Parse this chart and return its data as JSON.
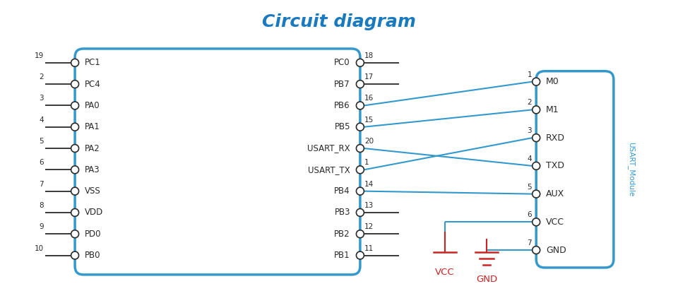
{
  "title": "Circuit diagram",
  "title_color": "#1a7abf",
  "title_fontsize": 18,
  "bg_color": "#ffffff",
  "dark_color": "#2a2a2a",
  "blue_color": "#3399cc",
  "red_color": "#cc2222",
  "left_pins": [
    {
      "label": "PC1",
      "num": "19"
    },
    {
      "label": "PC4",
      "num": "2"
    },
    {
      "label": "PA0",
      "num": "3"
    },
    {
      "label": "PA1",
      "num": "4"
    },
    {
      "label": "PA2",
      "num": "5"
    },
    {
      "label": "PA3",
      "num": "6"
    },
    {
      "label": "VSS",
      "num": "7"
    },
    {
      "label": "VDD",
      "num": "8"
    },
    {
      "label": "PD0",
      "num": "9"
    },
    {
      "label": "PB0",
      "num": "10"
    }
  ],
  "right_pins": [
    {
      "label": "PC0",
      "num": "18"
    },
    {
      "label": "PB7",
      "num": "17"
    },
    {
      "label": "PB6",
      "num": "16"
    },
    {
      "label": "PB5",
      "num": "15"
    },
    {
      "label": "USART_RX",
      "num": "20"
    },
    {
      "label": "USART_TX",
      "num": "1"
    },
    {
      "label": "PB4",
      "num": "14"
    },
    {
      "label": "PB3",
      "num": "13"
    },
    {
      "label": "PB2",
      "num": "12"
    },
    {
      "label": "PB1",
      "num": "11"
    }
  ],
  "module_pins": [
    {
      "label": "M0",
      "num": "1"
    },
    {
      "label": "M1",
      "num": "2"
    },
    {
      "label": "RXD",
      "num": "3"
    },
    {
      "label": "TXD",
      "num": "4"
    },
    {
      "label": "AUX",
      "num": "5"
    },
    {
      "label": "VCC",
      "num": "6"
    },
    {
      "label": "GND",
      "num": "7"
    }
  ]
}
